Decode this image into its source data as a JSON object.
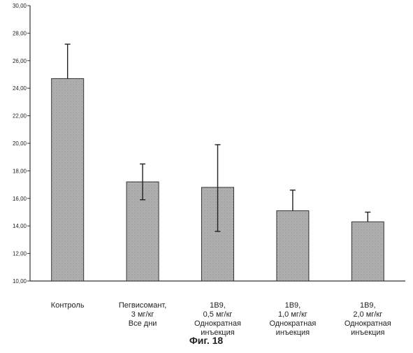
{
  "chart_data": {
    "type": "bar",
    "title": "",
    "xlabel": "",
    "ylabel": "",
    "ylim": [
      10,
      30
    ],
    "y_ticks": [
      "10,00",
      "12,00",
      "14,00",
      "16,00",
      "18,00",
      "20,00",
      "22,00",
      "24,00",
      "26,00",
      "28,00",
      "30,00"
    ],
    "categories": [
      [
        "Контроль"
      ],
      [
        "Пегвисомант,",
        "3 мг/кг",
        "Все дни"
      ],
      [
        "1В9,",
        "0,5 мг/кг",
        "Однократная",
        "инъекция"
      ],
      [
        "1В9,",
        "1,0 мг/кг",
        "Однократная",
        "инъекция"
      ],
      [
        "1В9,",
        "2,0 мг/кг",
        "Однократная",
        "инъекция"
      ]
    ],
    "values": [
      24.7,
      17.2,
      16.8,
      15.1,
      14.3
    ],
    "error_upper": [
      27.2,
      18.5,
      19.9,
      16.6,
      15.0
    ],
    "error_lower": [
      24.7,
      15.9,
      13.6,
      15.1,
      14.3
    ],
    "grid": false,
    "legend": "none",
    "caption": "Фиг. 18",
    "colors": {
      "bar_fill": "#a9a9a9",
      "bar_stroke": "#333333",
      "axis": "#333333",
      "error": "#222222"
    }
  }
}
